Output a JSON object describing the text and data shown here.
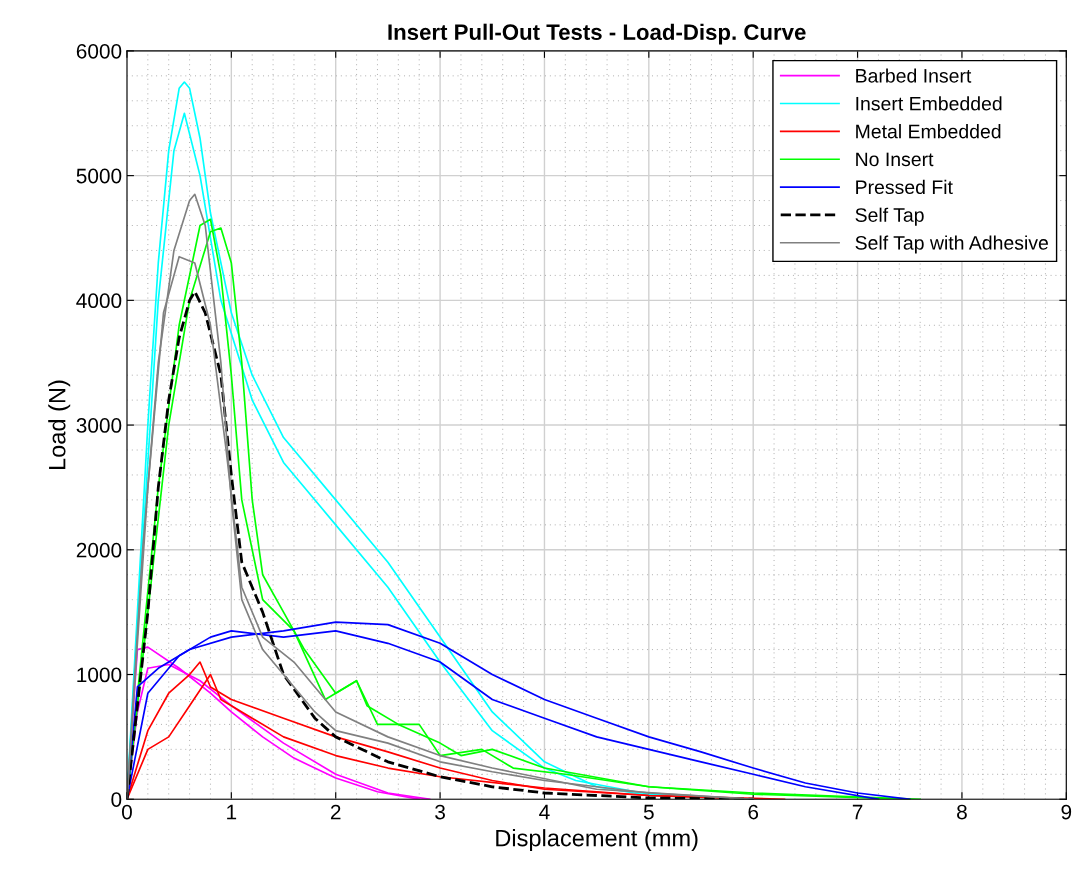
{
  "chart_data": {
    "type": "line",
    "title": "Insert Pull-Out Tests - Load-Disp. Curve",
    "xlabel": "Displacement (mm)",
    "ylabel": "Load (N)",
    "xlim": [
      0,
      9
    ],
    "xticks": [
      0,
      1,
      2,
      3,
      4,
      5,
      6,
      7,
      8,
      9
    ],
    "ylim": [
      0,
      6000
    ],
    "yticks": [
      0,
      1000,
      2000,
      3000,
      4000,
      5000,
      6000
    ],
    "grid": true,
    "legend": "top right",
    "line_style": "solid",
    "series": [
      {
        "name": "Barbed Insert",
        "color": "#ff00ff",
        "x": [
          0,
          0.1,
          0.2,
          0.5,
          0.8,
          1.0,
          1.3,
          1.6,
          2.0,
          2.4,
          2.8
        ],
        "values": [
          0,
          1200,
          1220,
          1050,
          850,
          700,
          500,
          330,
          170,
          60,
          0
        ]
      },
      {
        "color": "#ff00ff",
        "x": [
          0,
          0.1,
          0.2,
          0.4,
          0.7,
          1.0,
          1.5,
          2.0,
          2.5,
          2.9
        ],
        "values": [
          0,
          700,
          1050,
          1080,
          950,
          750,
          450,
          200,
          50,
          0
        ]
      },
      {
        "name": "Insert Embedded",
        "color": "#00ffff",
        "x": [
          0,
          0.1,
          0.2,
          0.3,
          0.4,
          0.5,
          0.55,
          0.6,
          0.7,
          0.8,
          1.0,
          1.2,
          1.5,
          2.0,
          2.5,
          3.0,
          3.5,
          4.0,
          4.5,
          5,
          6
        ],
        "values": [
          0,
          1500,
          3000,
          4300,
          5200,
          5700,
          5750,
          5700,
          5300,
          4700,
          3900,
          3400,
          2900,
          2400,
          1900,
          1300,
          700,
          300,
          100,
          30,
          0
        ]
      },
      {
        "color": "#00ffff",
        "x": [
          0,
          0.1,
          0.3,
          0.45,
          0.55,
          0.7,
          0.9,
          1.2,
          1.5,
          2.0,
          2.5,
          3.0,
          3.5,
          4.0,
          4.3,
          5,
          6
        ],
        "values": [
          0,
          1400,
          4000,
          5200,
          5500,
          5000,
          4000,
          3200,
          2700,
          2200,
          1700,
          1100,
          550,
          250,
          150,
          40,
          0
        ]
      },
      {
        "name": "Metal Embedded",
        "color": "#ff0000",
        "x": [
          0,
          0.2,
          0.4,
          0.6,
          0.7,
          0.8,
          1.0,
          1.5,
          2.0,
          2.5,
          3.0,
          3.5,
          4,
          5,
          6
        ],
        "values": [
          0,
          550,
          850,
          1000,
          1100,
          900,
          800,
          650,
          500,
          380,
          250,
          150,
          80,
          30,
          0
        ]
      },
      {
        "color": "#ff0000",
        "x": [
          0,
          0.2,
          0.4,
          0.6,
          0.8,
          0.9,
          1.2,
          1.5,
          2.0,
          2.5,
          3.0,
          4,
          5,
          6.3
        ],
        "values": [
          0,
          400,
          500,
          750,
          1000,
          800,
          650,
          500,
          350,
          250,
          180,
          90,
          30,
          0
        ]
      },
      {
        "name": "No Insert",
        "color": "#00ff00",
        "x": [
          0,
          0.2,
          0.4,
          0.6,
          0.8,
          0.9,
          1.0,
          1.1,
          1.2,
          1.3,
          1.5,
          1.7,
          2.0,
          2.2,
          2.4,
          2.8,
          3.0,
          3.4,
          3.7,
          4.2,
          5,
          6,
          7.6
        ],
        "values": [
          0,
          1500,
          3000,
          4000,
          4550,
          4580,
          4300,
          3500,
          2400,
          1800,
          1500,
          1200,
          850,
          950,
          600,
          600,
          350,
          400,
          250,
          200,
          100,
          50,
          0
        ]
      },
      {
        "color": "#00ff00",
        "x": [
          0,
          0.3,
          0.5,
          0.7,
          0.8,
          0.9,
          1.0,
          1.1,
          1.3,
          1.6,
          1.9,
          2.2,
          2.3,
          2.6,
          3.0,
          3.2,
          3.5,
          4,
          5,
          6,
          7.5
        ],
        "values": [
          0,
          2500,
          3800,
          4600,
          4650,
          4200,
          3400,
          2400,
          1600,
          1350,
          800,
          950,
          750,
          600,
          450,
          350,
          400,
          250,
          100,
          40,
          0
        ]
      },
      {
        "name": "Pressed Fit",
        "color": "#0000ff",
        "x": [
          0,
          0.1,
          0.3,
          0.6,
          1.0,
          1.5,
          2.0,
          2.5,
          3.0,
          3.5,
          4,
          4.5,
          5,
          5.5,
          6,
          6.5,
          7,
          7.5
        ],
        "values": [
          0,
          900,
          1050,
          1200,
          1300,
          1350,
          1420,
          1400,
          1250,
          1000,
          800,
          650,
          500,
          380,
          250,
          130,
          50,
          0
        ]
      },
      {
        "color": "#0000ff",
        "x": [
          0,
          0.2,
          0.5,
          0.8,
          1.0,
          1.5,
          2.0,
          2.5,
          3.0,
          3.5,
          4,
          4.5,
          5,
          5.5,
          6,
          6.5,
          7.2
        ],
        "values": [
          0,
          850,
          1150,
          1300,
          1350,
          1300,
          1350,
          1250,
          1100,
          800,
          650,
          500,
          400,
          300,
          200,
          100,
          0
        ]
      },
      {
        "name": "Self Tap",
        "color": "#000000",
        "line_style": "dashed",
        "x": [
          0,
          0.2,
          0.3,
          0.4,
          0.5,
          0.6,
          0.65,
          0.75,
          0.9,
          1.0,
          1.1,
          1.3,
          1.5,
          1.8,
          2.0,
          2.5,
          3.0,
          3.5,
          4,
          5,
          6
        ],
        "values": [
          0,
          1500,
          2500,
          3200,
          3700,
          4000,
          4070,
          3900,
          3400,
          2600,
          1900,
          1500,
          1000,
          650,
          500,
          300,
          180,
          100,
          50,
          10,
          0
        ]
      },
      {
        "name": "Self Tap with Adhesive",
        "color": "#808080",
        "x": [
          0,
          0.15,
          0.3,
          0.45,
          0.6,
          0.65,
          0.75,
          0.9,
          1.0,
          1.1,
          1.3,
          1.5,
          1.8,
          2.0,
          2.5,
          3.0,
          3.5,
          4,
          5,
          6
        ],
        "values": [
          0,
          2000,
          3500,
          4400,
          4800,
          4850,
          4600,
          3500,
          2400,
          1600,
          1200,
          1000,
          700,
          550,
          450,
          300,
          220,
          150,
          50,
          0
        ]
      },
      {
        "color": "#808080",
        "x": [
          0,
          0.2,
          0.35,
          0.5,
          0.65,
          0.8,
          0.95,
          1.1,
          1.3,
          1.6,
          2.0,
          2.5,
          3.0,
          3.5,
          4.5,
          6
        ],
        "values": [
          0,
          2500,
          3900,
          4350,
          4300,
          3800,
          2800,
          1700,
          1300,
          1100,
          700,
          500,
          350,
          250,
          80,
          0
        ]
      }
    ]
  }
}
